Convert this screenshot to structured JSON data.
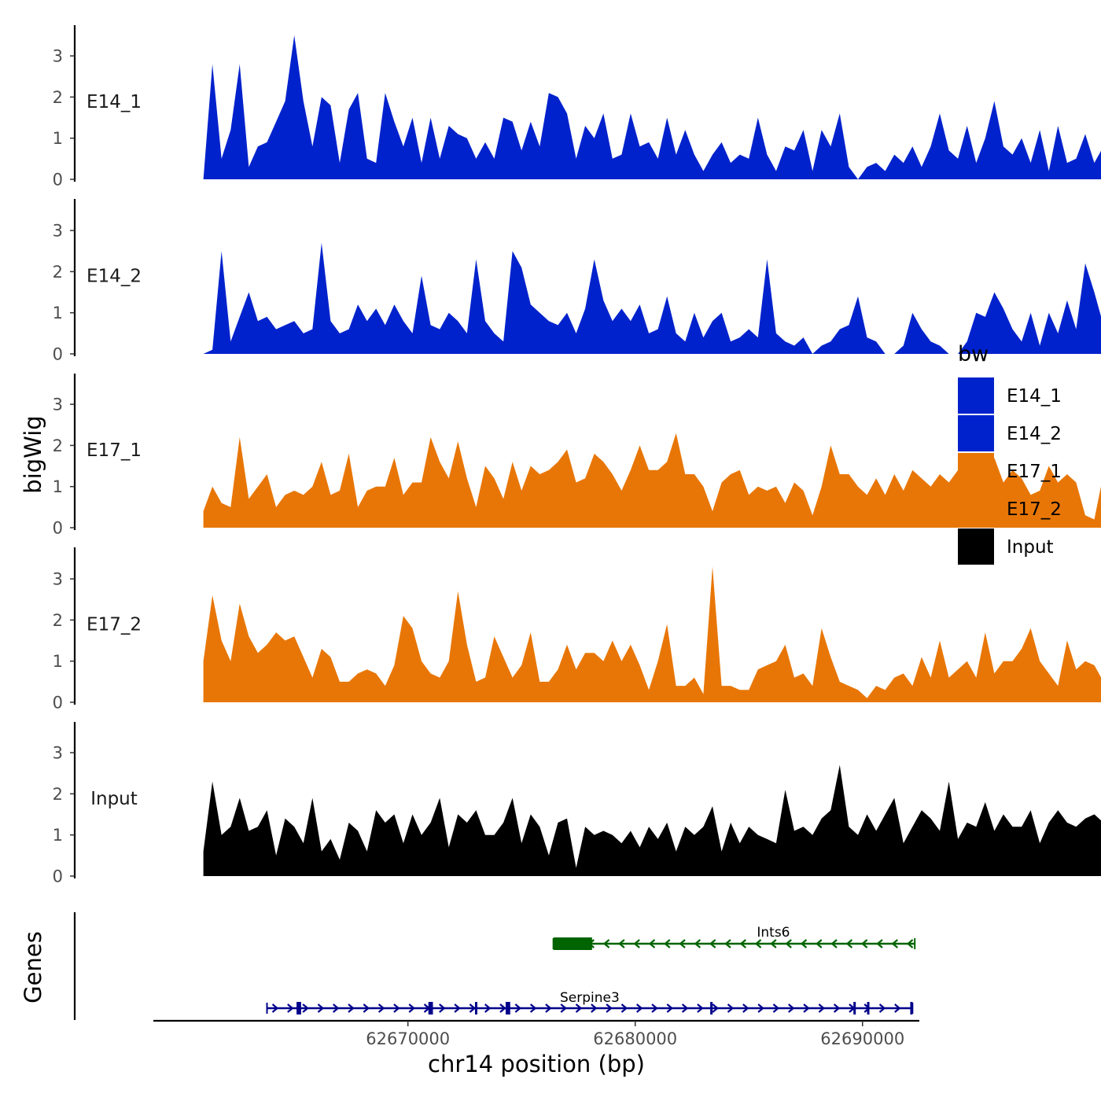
{
  "chart_data": {
    "type": "area",
    "chromosome": "chr14",
    "xlabel": "chr14 position (bp)",
    "ylabel": "bigWig",
    "xlim": [
      62658800,
      62692500
    ],
    "ylim": [
      0,
      3.8
    ],
    "x_ticks": [
      62670000,
      62680000,
      62690000
    ],
    "x_tick_labels": [
      "62670000",
      "62680000",
      "62690000"
    ],
    "y_ticks": [
      0,
      1,
      2,
      3
    ],
    "y_tick_labels": [
      "0",
      "1",
      "2",
      "3"
    ],
    "grid": false,
    "legend": {
      "title": "bw",
      "position": "right",
      "entries": [
        {
          "name": "E14_1",
          "color": "#0022cc"
        },
        {
          "name": "E14_2",
          "color": "#0022cc"
        },
        {
          "name": "E17_1",
          "color": "#e87606"
        },
        {
          "name": "E17_2",
          "color": "#e87606"
        },
        {
          "name": "Input",
          "color": "#000000"
        }
      ]
    },
    "track_start": 62661000,
    "track_step": 400,
    "tracks": [
      {
        "name": "E14_1",
        "color": "#0022cc",
        "values": [
          0,
          2.8,
          0.5,
          1.2,
          2.8,
          0.3,
          0.8,
          0.9,
          1.4,
          1.9,
          3.5,
          1.9,
          0.8,
          2.0,
          1.8,
          0.4,
          1.7,
          2.1,
          0.5,
          0.4,
          2.1,
          1.4,
          0.8,
          1.5,
          0.4,
          1.5,
          0.5,
          1.3,
          1.1,
          1.0,
          0.5,
          0.9,
          0.5,
          1.5,
          1.4,
          0.7,
          1.4,
          0.8,
          2.1,
          2.0,
          1.6,
          0.5,
          1.3,
          1.0,
          1.6,
          0.5,
          0.6,
          1.6,
          0.8,
          0.9,
          0.5,
          1.5,
          0.6,
          1.2,
          0.6,
          0.2,
          0.6,
          0.9,
          0.4,
          0.6,
          0.5,
          1.5,
          0.6,
          0.2,
          0.8,
          0.7,
          1.2,
          0.2,
          1.2,
          0.8,
          1.6,
          0.3,
          0,
          0.3,
          0.4,
          0.2,
          0.6,
          0.4,
          0.8,
          0.3,
          0.8,
          1.6,
          0.7,
          0.5,
          1.3,
          0.4,
          1.0,
          1.9,
          0.8,
          0.6,
          1.0,
          0.4,
          1.2,
          0.2,
          1.3,
          0.4,
          0.5,
          1.1,
          0.4,
          0.8,
          0.4,
          0.7,
          1.3,
          0.5,
          0.2,
          0.5,
          1.4,
          0.6,
          1.0,
          0.3,
          1.3,
          0.3,
          0.7,
          1.3,
          0.6,
          0.3,
          0.8,
          0.5,
          0.4,
          0.3,
          1.2,
          0,
          0.5,
          0.3,
          0.2,
          0.7,
          1.2,
          0.2,
          0.9,
          0.6,
          0.4,
          0.4,
          1.1,
          0.3,
          0.5
        ]
      },
      {
        "name": "E14_2",
        "color": "#0022cc",
        "values": [
          0,
          0.1,
          2.5,
          0.3,
          0.9,
          1.5,
          0.8,
          0.9,
          0.6,
          0.7,
          0.8,
          0.5,
          0.6,
          2.7,
          0.8,
          0.5,
          0.6,
          1.2,
          0.8,
          1.1,
          0.7,
          1.2,
          0.8,
          0.5,
          1.9,
          0.7,
          0.6,
          1.0,
          0.8,
          0.5,
          2.3,
          0.8,
          0.5,
          0.3,
          2.5,
          2.1,
          1.2,
          1.0,
          0.8,
          0.7,
          1.0,
          0.5,
          1.1,
          2.3,
          1.3,
          0.8,
          1.1,
          0.8,
          1.2,
          0.5,
          0.6,
          1.4,
          0.5,
          0.3,
          1.0,
          0.4,
          0.8,
          1.0,
          0.3,
          0.4,
          0.6,
          0.4,
          2.3,
          0.5,
          0.3,
          0.2,
          0.4,
          0,
          0.2,
          0.3,
          0.6,
          0.7,
          1.4,
          0.4,
          0.3,
          0,
          0,
          0.2,
          1.0,
          0.6,
          0.3,
          0.2,
          0,
          0,
          0.3,
          1.0,
          0.9,
          1.5,
          1.1,
          0.6,
          0.3,
          1.0,
          0.2,
          1.0,
          0.5,
          1.3,
          0.6,
          2.2,
          1.5,
          0.7,
          0.4,
          0.6,
          1.9,
          0.4,
          1.0,
          2.5,
          1.5,
          0.7,
          0.4,
          0.2,
          1.2,
          0.6,
          1.0,
          0.2,
          0.5,
          0.7,
          1.4,
          0.2,
          0.5,
          2.1,
          0.6,
          0.2,
          0.3,
          0.7,
          0.1,
          1.2,
          0.3,
          1.4,
          0.5,
          0.8,
          0.2,
          0.4,
          1.1,
          0.3,
          0.4
        ]
      },
      {
        "name": "E17_1",
        "color": "#e87606",
        "values": [
          0.4,
          1.0,
          0.6,
          0.5,
          2.2,
          0.7,
          1.0,
          1.3,
          0.5,
          0.8,
          0.9,
          0.8,
          1.0,
          1.6,
          0.8,
          0.9,
          1.8,
          0.5,
          0.9,
          1.0,
          1.0,
          1.7,
          0.8,
          1.1,
          1.1,
          2.2,
          1.6,
          1.2,
          2.1,
          1.2,
          0.5,
          1.5,
          1.2,
          0.7,
          1.6,
          0.9,
          1.5,
          1.3,
          1.4,
          1.6,
          1.9,
          1.1,
          1.2,
          1.8,
          1.6,
          1.3,
          0.9,
          1.4,
          2.0,
          1.4,
          1.4,
          1.6,
          2.3,
          1.3,
          1.3,
          1.0,
          0.4,
          1.1,
          1.3,
          1.4,
          0.8,
          1.0,
          0.9,
          1.0,
          0.6,
          1.1,
          0.9,
          0.3,
          1.0,
          2.0,
          1.3,
          1.3,
          1.0,
          0.8,
          1.2,
          0.8,
          1.3,
          0.9,
          1.4,
          1.2,
          1.0,
          1.3,
          1.1,
          1.4,
          1.2,
          1.3,
          1.0,
          1.7,
          1.1,
          1.4,
          1.2,
          0.8,
          0.9,
          1.5,
          1.1,
          1.3,
          1.1,
          0.3,
          0.2,
          1.3,
          1.0,
          1.1,
          1.2,
          0.7,
          0.9,
          1.0,
          1.4,
          0.8,
          1.1,
          0.7,
          1.2,
          0.5,
          1.0,
          0.7,
          1.3,
          0.6,
          1.4,
          2.0,
          0.5,
          0.7,
          1.1,
          0.4,
          0.2,
          1.1,
          0.8,
          0.5,
          1.6,
          0.7,
          1.0,
          0.6,
          1.2,
          0.8,
          1.4,
          0.7,
          1.1
        ]
      },
      {
        "name": "E17_2",
        "color": "#e87606",
        "values": [
          1.0,
          2.6,
          1.5,
          1.0,
          2.4,
          1.6,
          1.2,
          1.4,
          1.7,
          1.5,
          1.6,
          1.1,
          0.6,
          1.3,
          1.1,
          0.5,
          0.5,
          0.7,
          0.8,
          0.7,
          0.4,
          0.9,
          2.1,
          1.8,
          1.0,
          0.7,
          0.6,
          1.0,
          2.7,
          1.4,
          0.5,
          0.6,
          1.6,
          1.1,
          0.6,
          0.9,
          1.7,
          0.5,
          0.5,
          0.8,
          1.4,
          0.8,
          1.2,
          1.2,
          1.0,
          1.5,
          1.0,
          1.4,
          0.9,
          0.3,
          1.0,
          1.9,
          0.4,
          0.4,
          0.6,
          0.2,
          3.3,
          0.4,
          0.4,
          0.3,
          0.3,
          0.8,
          0.9,
          1.0,
          1.4,
          0.6,
          0.7,
          0.4,
          1.8,
          1.1,
          0.5,
          0.4,
          0.3,
          0.1,
          0.4,
          0.3,
          0.6,
          0.7,
          0.4,
          1.1,
          0.6,
          1.5,
          0.6,
          0.8,
          1.0,
          0.6,
          1.7,
          0.7,
          1.0,
          1.0,
          1.3,
          1.8,
          1.0,
          0.7,
          0.4,
          1.5,
          0.8,
          1.0,
          0.9,
          0.5,
          0.3,
          0.9,
          1.0,
          0.6,
          0.4,
          1.4,
          0.5,
          1.2,
          0.9,
          1.9,
          1.2,
          1.3,
          0.8,
          0.4,
          0.3,
          0.6,
          1.1,
          0.9,
          1.7,
          0.6,
          1.2,
          0.8,
          0.4,
          0.6,
          1.3,
          0.4,
          0.9,
          0.4,
          0.6,
          0.8,
          1.4,
          0.4,
          1.2,
          0.2,
          1.3
        ]
      },
      {
        "name": "Input",
        "color": "#000000",
        "values": [
          0.6,
          2.3,
          1.0,
          1.2,
          1.9,
          1.1,
          1.2,
          1.6,
          0.5,
          1.4,
          1.2,
          0.8,
          1.9,
          0.6,
          0.9,
          0.4,
          1.3,
          1.1,
          0.6,
          1.6,
          1.3,
          1.5,
          0.8,
          1.5,
          1.0,
          1.3,
          1.9,
          0.7,
          1.5,
          1.3,
          1.6,
          1.0,
          1.0,
          1.3,
          1.9,
          0.8,
          1.5,
          1.2,
          0.5,
          1.3,
          1.4,
          0.2,
          1.2,
          1.0,
          1.1,
          1.0,
          0.8,
          1.1,
          0.7,
          1.2,
          0.9,
          1.3,
          0.6,
          1.2,
          1.0,
          1.2,
          1.7,
          0.6,
          1.3,
          0.8,
          1.2,
          1.0,
          0.9,
          0.8,
          2.1,
          1.1,
          1.2,
          1.0,
          1.4,
          1.6,
          2.7,
          1.2,
          1.0,
          1.5,
          1.1,
          1.5,
          1.9,
          0.8,
          1.2,
          1.6,
          1.4,
          1.1,
          2.3,
          0.9,
          1.3,
          1.2,
          1.8,
          1.1,
          1.5,
          1.2,
          1.2,
          1.6,
          0.8,
          1.3,
          1.6,
          1.3,
          1.2,
          1.4,
          1.5,
          1.3,
          0.9,
          2.2,
          1.6,
          1.1,
          1.2,
          1.8,
          1.3,
          1.6,
          2.1,
          1.2,
          1.6,
          2.2,
          1.5,
          2.0,
          2.8,
          1.7,
          1.3,
          3.0,
          1.0,
          0.7,
          2.0,
          2.7,
          1.4,
          2.1,
          1.5,
          1.8,
          1.0,
          0.6,
          1.6,
          0.9,
          1.5,
          1.1,
          1.3,
          0.8,
          1.4
        ]
      }
    ],
    "genes": [
      {
        "name": "Ints6",
        "strand": "-",
        "color": "#006400",
        "start": 62676400,
        "end": 62692300,
        "exons": [
          {
            "start": 62676400,
            "end": 62678100
          }
        ]
      },
      {
        "name": "Serpine3",
        "strand": "+",
        "color": "#00008b",
        "start": 62663800,
        "end": 62692200,
        "exons": [
          {
            "start": 62665100,
            "end": 62665300
          },
          {
            "start": 62670900,
            "end": 62671100
          },
          {
            "start": 62672950,
            "end": 62673050
          },
          {
            "start": 62674300,
            "end": 62674500
          },
          {
            "start": 62683300,
            "end": 62683350
          },
          {
            "start": 62689600,
            "end": 62689650
          },
          {
            "start": 62690200,
            "end": 62690250
          },
          {
            "start": 62692100,
            "end": 62692200
          }
        ]
      }
    ],
    "genes_panel_label": "Genes"
  }
}
